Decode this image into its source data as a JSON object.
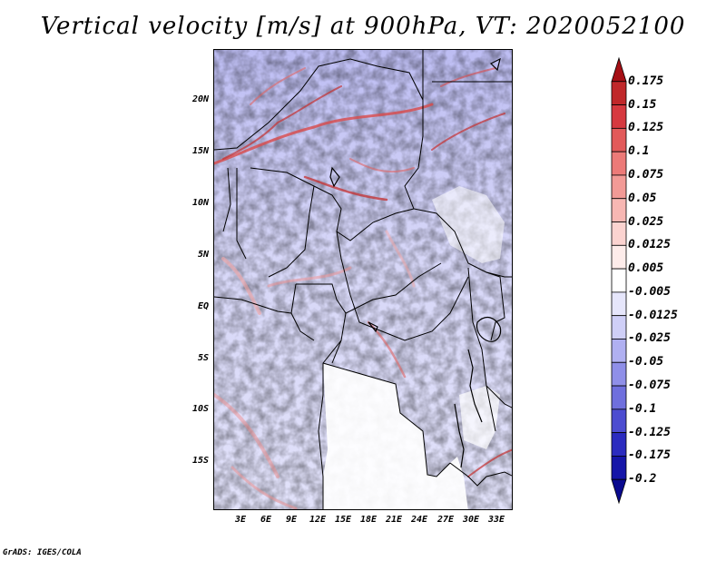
{
  "title": "Vertical velocity [m/s] at 900hPa, VT: 2020052100",
  "credit": "GrADS: IGES/COLA",
  "lat_ticks": [
    "20N",
    "15N",
    "10N",
    "5N",
    "EQ",
    "5S",
    "10S",
    "15S"
  ],
  "lon_ticks": [
    "3E",
    "6E",
    "9E",
    "12E",
    "15E",
    "18E",
    "21E",
    "24E",
    "27E",
    "30E",
    "33E"
  ],
  "colorbar": {
    "labels": [
      "0.175",
      "0.15",
      "0.125",
      "0.1",
      "0.075",
      "0.05",
      "0.025",
      "0.0125",
      "0.005",
      "-0.005",
      "-0.0125",
      "-0.025",
      "-0.05",
      "-0.075",
      "-0.1",
      "-0.125",
      "-0.175",
      "-0.2"
    ],
    "colors": [
      "#a50f15",
      "#c0282a",
      "#d6393f",
      "#e25a5a",
      "#ec7a78",
      "#f29a96",
      "#f7b7b3",
      "#fbd3d0",
      "#fdecea",
      "#ffffff",
      "#e6e6fb",
      "#cfcff7",
      "#b0b0f1",
      "#8f8fe8",
      "#6f6fdd",
      "#4c4cd0",
      "#2b2bbf",
      "#1515a8",
      "#0a0a8f"
    ]
  }
}
